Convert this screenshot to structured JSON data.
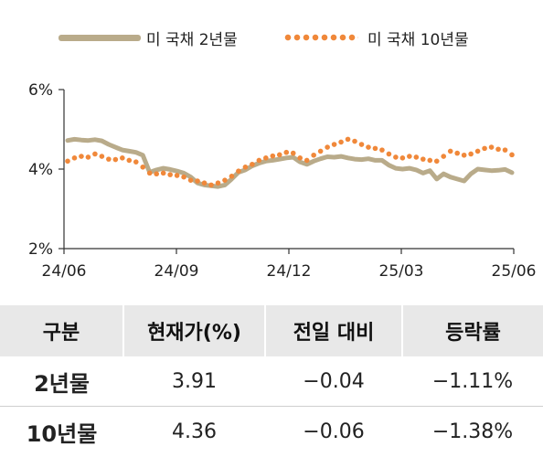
{
  "chart_data": {
    "type": "line",
    "y_ticks": [
      "6%",
      "4%",
      "2%"
    ],
    "y_tick_values": [
      6,
      4,
      2
    ],
    "x_ticks": [
      "24/06",
      "24/09",
      "24/12",
      "25/03",
      "25/06"
    ],
    "ylim": [
      2,
      6
    ],
    "grid": false,
    "legend_position": "top",
    "series": [
      {
        "name": "미 국채 2년물",
        "style": "solid",
        "color": "#b9ab8a",
        "values": [
          4.72,
          4.75,
          4.73,
          4.72,
          4.74,
          4.71,
          4.62,
          4.55,
          4.48,
          4.45,
          4.42,
          4.35,
          3.92,
          3.98,
          4.02,
          3.99,
          3.95,
          3.9,
          3.8,
          3.65,
          3.6,
          3.58,
          3.56,
          3.6,
          3.75,
          3.92,
          3.98,
          4.08,
          4.15,
          4.2,
          4.22,
          4.25,
          4.28,
          4.3,
          4.18,
          4.12,
          4.2,
          4.26,
          4.31,
          4.3,
          4.32,
          4.28,
          4.25,
          4.24,
          4.26,
          4.22,
          4.22,
          4.1,
          4.02,
          4.0,
          4.02,
          3.98,
          3.9,
          3.96,
          3.75,
          3.88,
          3.8,
          3.75,
          3.7,
          3.88,
          4.0,
          3.98,
          3.96,
          3.97,
          3.99,
          3.91
        ]
      },
      {
        "name": "미 국채 10년물",
        "style": "dotted",
        "color": "#f0883a",
        "values": [
          4.2,
          4.28,
          4.32,
          4.3,
          4.38,
          4.32,
          4.25,
          4.24,
          4.28,
          4.22,
          4.18,
          4.05,
          3.9,
          3.88,
          3.9,
          3.86,
          3.84,
          3.8,
          3.72,
          3.7,
          3.65,
          3.6,
          3.65,
          3.72,
          3.82,
          3.95,
          4.05,
          4.12,
          4.22,
          4.28,
          4.33,
          4.36,
          4.42,
          4.4,
          4.28,
          4.22,
          4.35,
          4.45,
          4.55,
          4.62,
          4.68,
          4.75,
          4.7,
          4.62,
          4.55,
          4.52,
          4.48,
          4.38,
          4.3,
          4.28,
          4.32,
          4.3,
          4.25,
          4.22,
          4.2,
          4.32,
          4.45,
          4.4,
          4.35,
          4.38,
          4.45,
          4.52,
          4.55,
          4.5,
          4.48,
          4.36
        ]
      }
    ]
  },
  "table": {
    "headers": [
      "구분",
      "현재가(%)",
      "전일 대비",
      "등락률"
    ],
    "rows": [
      {
        "name": "2년물",
        "current": "3.91",
        "change": "−0.04",
        "rate": "−1.11%"
      },
      {
        "name": "10년물",
        "current": "4.36",
        "change": "−0.06",
        "rate": "−1.38%"
      }
    ]
  }
}
